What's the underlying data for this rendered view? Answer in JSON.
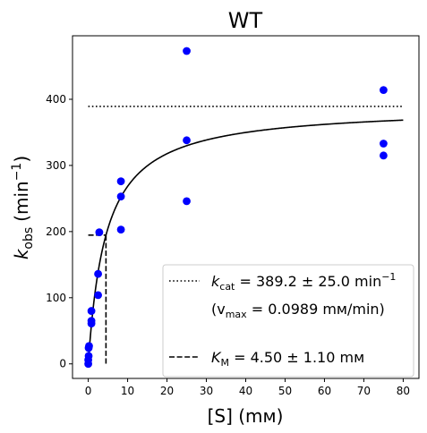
{
  "chart_data": {
    "type": "scatter",
    "title": "WT",
    "xlabel": "[S] (mм)",
    "ylabel_main": "k",
    "ylabel_sub": "obs",
    "ylabel_unit_open": "(min",
    "ylabel_unit_sup": "−1",
    "ylabel_unit_close": ")",
    "xlim": [
      -4,
      84
    ],
    "ylim": [
      -22,
      496
    ],
    "x_ticks": [
      0,
      10,
      20,
      30,
      40,
      50,
      60,
      70,
      80
    ],
    "y_ticks": [
      0,
      100,
      200,
      300,
      400
    ],
    "points_color": "#0000ff",
    "points": [
      {
        "x": 0.0,
        "y": 0
      },
      {
        "x": 0.0,
        "y": 6
      },
      {
        "x": 0.1,
        "y": 12
      },
      {
        "x": 0.1,
        "y": 24
      },
      {
        "x": 0.2,
        "y": 27
      },
      {
        "x": 0.8,
        "y": 61
      },
      {
        "x": 0.8,
        "y": 65
      },
      {
        "x": 0.8,
        "y": 80
      },
      {
        "x": 2.5,
        "y": 104
      },
      {
        "x": 2.5,
        "y": 136
      },
      {
        "x": 2.8,
        "y": 199
      },
      {
        "x": 8.3,
        "y": 203
      },
      {
        "x": 8.3,
        "y": 253
      },
      {
        "x": 8.3,
        "y": 276
      },
      {
        "x": 25,
        "y": 246
      },
      {
        "x": 25,
        "y": 338
      },
      {
        "x": 25,
        "y": 473
      },
      {
        "x": 75,
        "y": 315
      },
      {
        "x": 75,
        "y": 333
      },
      {
        "x": 75,
        "y": 414
      }
    ],
    "fit": {
      "kcat": 389.2,
      "km": 4.5,
      "x_range": [
        0,
        80
      ],
      "color": "#000000"
    },
    "kcat_line": {
      "y": 389.2,
      "x_range": [
        0,
        80
      ]
    },
    "km_lines": {
      "x": 4.5,
      "y": 194.6,
      "x_start": 0
    },
    "legend": {
      "position": "lower-right",
      "kcat_label": "k",
      "kcat_sub": "cat",
      "kcat_value": " = 389.2 ± 25.0 min",
      "kcat_sup": "−1",
      "vmax_open": "(v",
      "vmax_sub": "max",
      "vmax_value": " = 0.0989 mм/min)",
      "km_label": "K",
      "km_sub": "M",
      "km_value": " = 4.50 ± 1.10 mм"
    }
  }
}
